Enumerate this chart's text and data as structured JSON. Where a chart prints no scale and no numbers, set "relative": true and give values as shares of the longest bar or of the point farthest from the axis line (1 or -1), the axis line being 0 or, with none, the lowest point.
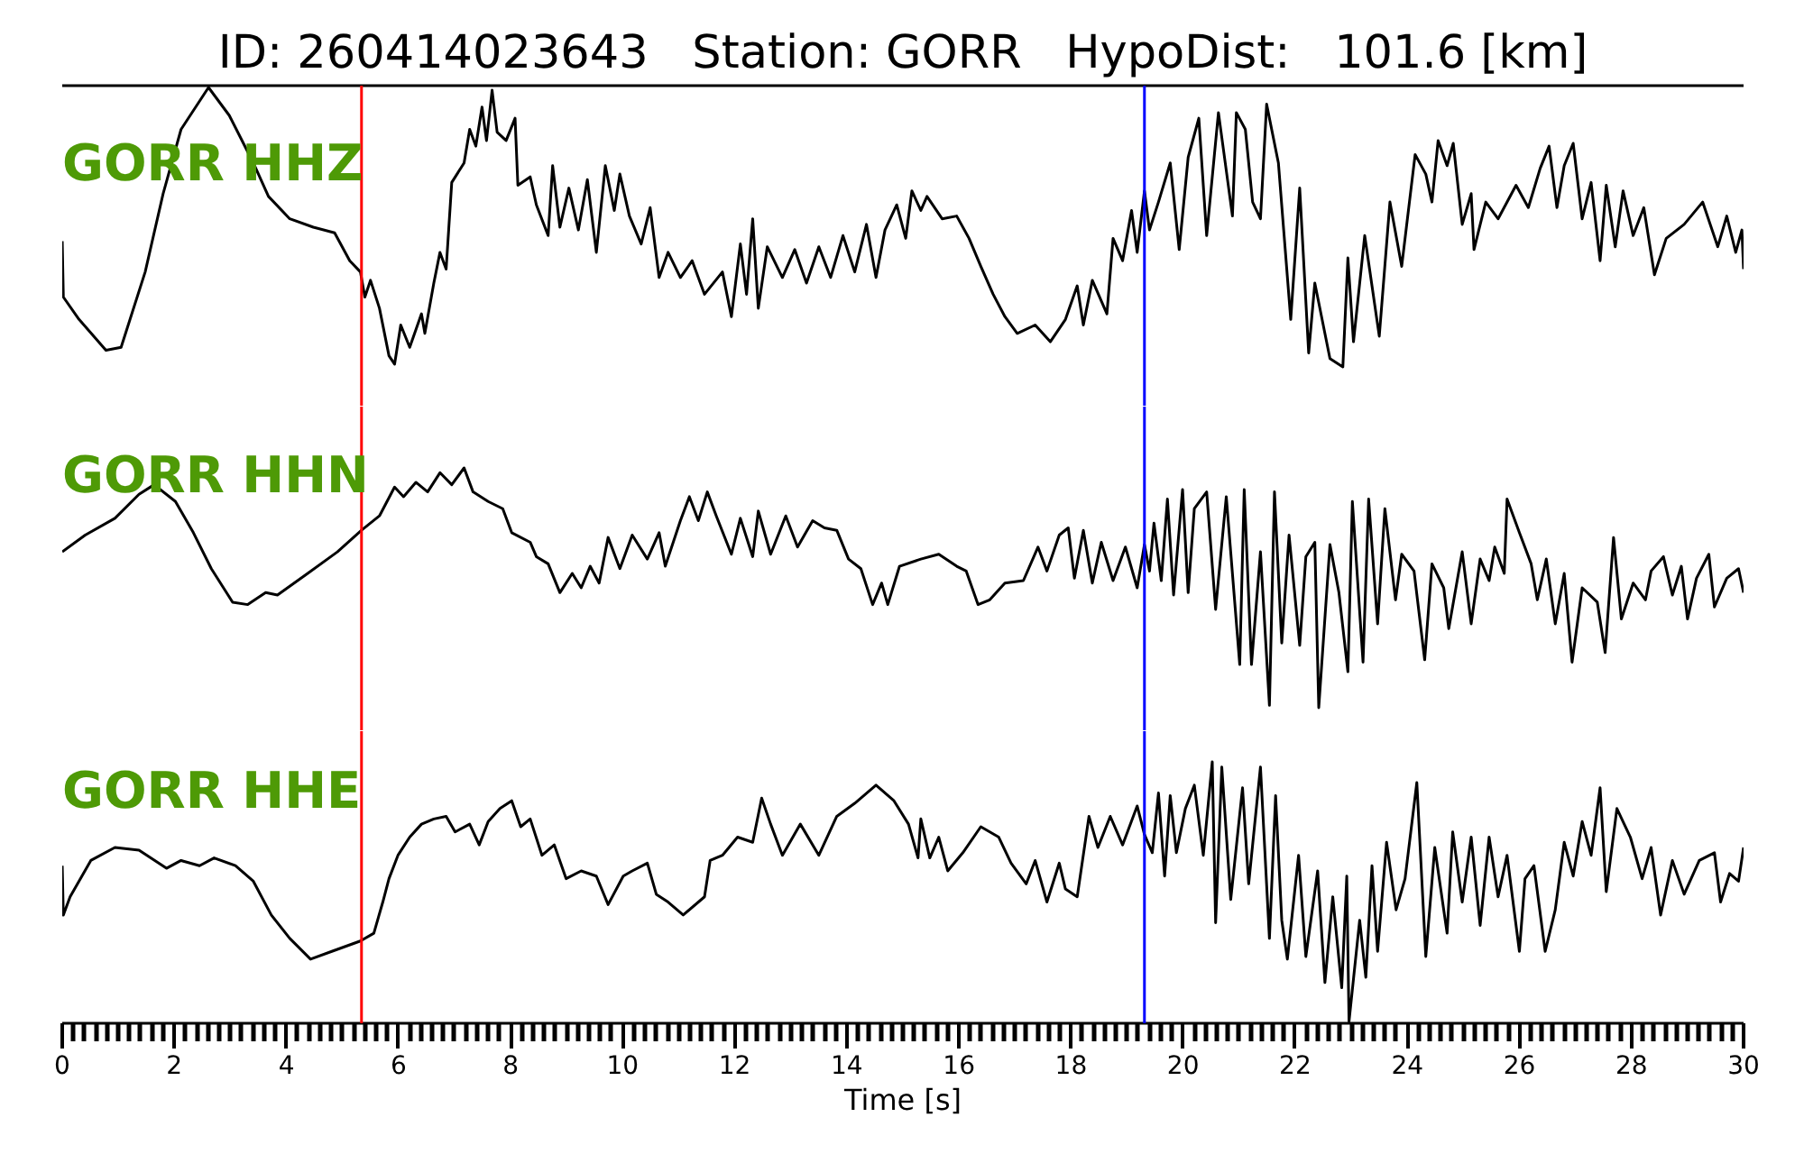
{
  "chart_data": [
    {
      "type": "line",
      "title": "ID: 260414023643   Station: GORR   HypoDist:   101.6 [km]",
      "relative": true,
      "xlim": [
        0,
        30
      ],
      "tick_labels": false,
      "ref_lines": [
        {
          "axis": "x",
          "value": 5.34,
          "color": "#ff0000"
        },
        {
          "axis": "x",
          "value": 19.31,
          "color": "#0000ff"
        }
      ],
      "series": [
        {
          "name": "GORR HHZ",
          "color": "#000000",
          "x": [
            0,
            0.02,
            0.3,
            0.78,
            1.05,
            1.48,
            1.8,
            2.12,
            2.61,
            2.98,
            3.41,
            3.68,
            4.06,
            4.48,
            4.86,
            5.13,
            5.32,
            5.4,
            5.5,
            5.66,
            5.83,
            5.93,
            6.04,
            6.2,
            6.41,
            6.47,
            6.63,
            6.74,
            6.85,
            6.95,
            7.17,
            7.27,
            7.38,
            7.49,
            7.57,
            7.67,
            7.76,
            7.92,
            8.08,
            8.13,
            8.35,
            8.46,
            8.67,
            8.75,
            8.88,
            9.04,
            9.21,
            9.37,
            9.53,
            9.69,
            9.85,
            9.95,
            10.12,
            10.33,
            10.49,
            10.65,
            10.81,
            11.03,
            11.24,
            11.46,
            11.78,
            11.94,
            12.1,
            12.21,
            12.32,
            12.42,
            12.58,
            12.85,
            13.07,
            13.28,
            13.5,
            13.71,
            13.93,
            14.14,
            14.35,
            14.52,
            14.68,
            14.89,
            15.05,
            15.16,
            15.32,
            15.43,
            15.7,
            15.96,
            16.18,
            16.39,
            16.61,
            16.82,
            17.04,
            17.36,
            17.63,
            17.9,
            18.11,
            18.22,
            18.38,
            18.64,
            18.75,
            18.92,
            19.08,
            19.18,
            19.31,
            19.4,
            19.56,
            19.77,
            19.93,
            20.09,
            20.28,
            20.42,
            20.63,
            20.88,
            20.95,
            21.11,
            21.24,
            21.38,
            21.49,
            21.7,
            21.92,
            22.08,
            22.24,
            22.35,
            22.62,
            22.85,
            22.94,
            23.04,
            23.24,
            23.5,
            23.69,
            23.9,
            24.14,
            24.33,
            24.44,
            24.55,
            24.71,
            24.82,
            24.98,
            25.14,
            25.19,
            25.4,
            25.62,
            25.94,
            26.16,
            26.37,
            26.53,
            26.67,
            26.8,
            26.96,
            27.12,
            27.28,
            27.44,
            27.55,
            27.71,
            27.85,
            28.03,
            28.22,
            28.41,
            28.62,
            28.94,
            29.27,
            29.54,
            29.7,
            29.86,
            29.97,
            30
          ],
          "values": [
            0.45,
            0.25,
            0.17,
            0.06,
            0.07,
            0.34,
            0.62,
            0.85,
            1,
            0.9,
            0.73,
            0.61,
            0.53,
            0.5,
            0.48,
            0.38,
            0.34,
            0.25,
            0.31,
            0.21,
            0.04,
            0.01,
            0.15,
            0.07,
            0.19,
            0.12,
            0.3,
            0.41,
            0.35,
            0.66,
            0.73,
            0.85,
            0.79,
            0.93,
            0.81,
            0.99,
            0.84,
            0.81,
            0.89,
            0.65,
            0.68,
            0.58,
            0.47,
            0.72,
            0.5,
            0.64,
            0.49,
            0.67,
            0.41,
            0.72,
            0.56,
            0.69,
            0.54,
            0.44,
            0.57,
            0.32,
            0.41,
            0.32,
            0.38,
            0.26,
            0.34,
            0.18,
            0.44,
            0.26,
            0.53,
            0.21,
            0.43,
            0.32,
            0.42,
            0.3,
            0.43,
            0.32,
            0.47,
            0.34,
            0.51,
            0.32,
            0.49,
            0.58,
            0.46,
            0.63,
            0.56,
            0.61,
            0.53,
            0.54,
            0.46,
            0.36,
            0.26,
            0.18,
            0.12,
            0.15,
            0.09,
            0.17,
            0.29,
            0.15,
            0.31,
            0.19,
            0.46,
            0.38,
            0.56,
            0.41,
            0.63,
            0.49,
            0.59,
            0.73,
            0.42,
            0.75,
            0.89,
            0.47,
            0.91,
            0.54,
            0.91,
            0.85,
            0.59,
            0.53,
            0.94,
            0.73,
            0.17,
            0.64,
            0.05,
            0.3,
            0.03,
            0,
            0.39,
            0.09,
            0.47,
            0.11,
            0.59,
            0.36,
            0.76,
            0.69,
            0.59,
            0.81,
            0.72,
            0.8,
            0.51,
            0.62,
            0.42,
            0.59,
            0.53,
            0.65,
            0.57,
            0.71,
            0.79,
            0.57,
            0.72,
            0.8,
            0.53,
            0.66,
            0.38,
            0.65,
            0.43,
            0.63,
            0.47,
            0.57,
            0.33,
            0.46,
            0.51,
            0.59,
            0.43,
            0.54,
            0.41,
            0.49,
            0.35
          ]
        }
      ]
    },
    {
      "type": "line",
      "relative": true,
      "xlim": [
        0,
        30
      ],
      "tick_labels": false,
      "ref_lines": [
        {
          "axis": "x",
          "value": 5.34,
          "color": "#ff0000"
        },
        {
          "axis": "x",
          "value": 19.31,
          "color": "#0000ff"
        }
      ],
      "series": [
        {
          "name": "GORR HHN",
          "color": "#000000",
          "x": [
            0,
            0.41,
            0.94,
            1.37,
            1.64,
            2.02,
            2.34,
            2.66,
            3.04,
            3.31,
            3.63,
            3.84,
            4.38,
            4.91,
            5.34,
            5.66,
            5.93,
            6.09,
            6.31,
            6.52,
            6.74,
            6.95,
            7.17,
            7.33,
            7.6,
            7.86,
            8.02,
            8.35,
            8.46,
            8.67,
            8.88,
            9.1,
            9.26,
            9.42,
            9.58,
            9.74,
            9.95,
            10.17,
            10.44,
            10.65,
            10.76,
            11.03,
            11.19,
            11.35,
            11.51,
            11.67,
            11.94,
            12.1,
            12.32,
            12.42,
            12.64,
            12.91,
            13.12,
            13.39,
            13.6,
            13.82,
            14.03,
            14.25,
            14.46,
            14.62,
            14.73,
            14.94,
            15.32,
            15.64,
            15.96,
            16.13,
            16.34,
            16.55,
            16.82,
            17.15,
            17.41,
            17.57,
            17.79,
            17.95,
            18.06,
            18.22,
            18.38,
            18.54,
            18.75,
            18.97,
            19.18,
            19.31,
            19.4,
            19.48,
            19.61,
            19.72,
            19.83,
            19.99,
            20.09,
            20.2,
            20.42,
            20.58,
            20.77,
            21.01,
            21.09,
            21.22,
            21.38,
            21.54,
            21.63,
            21.76,
            21.89,
            22.08,
            22.19,
            22.35,
            22.42,
            22.62,
            22.78,
            22.94,
            23.02,
            23.21,
            23.31,
            23.47,
            23.6,
            23.79,
            23.9,
            24.12,
            24.31,
            24.44,
            24.65,
            24.74,
            24.98,
            25.14,
            25.3,
            25.46,
            25.56,
            25.73,
            25.78,
            26.0,
            26.21,
            26.32,
            26.48,
            26.64,
            26.8,
            26.94,
            27.12,
            27.39,
            27.53,
            27.68,
            27.82,
            28.03,
            28.25,
            28.35,
            28.57,
            28.73,
            28.89,
            29.0,
            29.16,
            29.38,
            29.48,
            29.7,
            29.91,
            30
          ],
          "values": [
            0.65,
            0.72,
            0.79,
            0.89,
            0.93,
            0.86,
            0.73,
            0.58,
            0.44,
            0.43,
            0.48,
            0.47,
            0.56,
            0.65,
            0.74,
            0.8,
            0.92,
            0.88,
            0.94,
            0.9,
            0.98,
            0.93,
            1,
            0.9,
            0.86,
            0.83,
            0.73,
            0.69,
            0.63,
            0.6,
            0.48,
            0.56,
            0.5,
            0.59,
            0.52,
            0.71,
            0.58,
            0.72,
            0.62,
            0.73,
            0.59,
            0.78,
            0.88,
            0.78,
            0.9,
            0.8,
            0.64,
            0.79,
            0.63,
            0.82,
            0.64,
            0.8,
            0.67,
            0.78,
            0.75,
            0.74,
            0.62,
            0.58,
            0.43,
            0.52,
            0.43,
            0.59,
            0.62,
            0.64,
            0.59,
            0.57,
            0.43,
            0.45,
            0.52,
            0.53,
            0.67,
            0.57,
            0.72,
            0.75,
            0.54,
            0.74,
            0.52,
            0.69,
            0.53,
            0.67,
            0.5,
            0.68,
            0.57,
            0.77,
            0.53,
            0.87,
            0.47,
            0.91,
            0.48,
            0.83,
            0.9,
            0.41,
            0.88,
            0.18,
            0.91,
            0.18,
            0.65,
            0.01,
            0.9,
            0.27,
            0.72,
            0.26,
            0.63,
            0.69,
            0,
            0.68,
            0.48,
            0.15,
            0.86,
            0.19,
            0.87,
            0.35,
            0.83,
            0.45,
            0.64,
            0.57,
            0.2,
            0.6,
            0.5,
            0.33,
            0.65,
            0.35,
            0.62,
            0.53,
            0.67,
            0.56,
            0.87,
            0.73,
            0.6,
            0.45,
            0.62,
            0.35,
            0.56,
            0.19,
            0.5,
            0.44,
            0.23,
            0.71,
            0.37,
            0.52,
            0.45,
            0.57,
            0.63,
            0.47,
            0.59,
            0.37,
            0.54,
            0.64,
            0.42,
            0.54,
            0.58,
            0.48
          ]
        }
      ]
    },
    {
      "type": "line",
      "relative": true,
      "xlim": [
        0,
        30
      ],
      "tick_labels": "x",
      "xlabel": "Time [s]",
      "xticks": [
        0,
        {
          "value": 0.2,
          "label": null
        },
        {
          "value": 0.4,
          "label": null
        },
        {
          "value": 0.6,
          "label": null
        },
        {
          "value": 0.8,
          "label": null
        },
        {
          "value": 1,
          "label": null
        },
        {
          "value": 1.2,
          "label": null
        },
        {
          "value": 1.4,
          "label": null
        },
        {
          "value": 1.6,
          "label": null
        },
        {
          "value": 1.8,
          "label": null
        },
        2,
        {
          "value": 2.2,
          "label": null
        },
        {
          "value": 2.4,
          "label": null
        },
        {
          "value": 2.6,
          "label": null
        },
        {
          "value": 2.8,
          "label": null
        },
        {
          "value": 3,
          "label": null
        },
        {
          "value": 3.2,
          "label": null
        },
        {
          "value": 3.4,
          "label": null
        },
        {
          "value": 3.6,
          "label": null
        },
        {
          "value": 3.8,
          "label": null
        },
        4,
        {
          "value": 4.2,
          "label": null
        },
        {
          "value": 4.4,
          "label": null
        },
        {
          "value": 4.6,
          "label": null
        },
        {
          "value": 4.8,
          "label": null
        },
        {
          "value": 5,
          "label": null
        },
        {
          "value": 5.2,
          "label": null
        },
        {
          "value": 5.4,
          "label": null
        },
        {
          "value": 5.6,
          "label": null
        },
        {
          "value": 5.8,
          "label": null
        },
        6,
        {
          "value": 6.2,
          "label": null
        },
        {
          "value": 6.4,
          "label": null
        },
        {
          "value": 6.6,
          "label": null
        },
        {
          "value": 6.8,
          "label": null
        },
        {
          "value": 7,
          "label": null
        },
        {
          "value": 7.2,
          "label": null
        },
        {
          "value": 7.4,
          "label": null
        },
        {
          "value": 7.6,
          "label": null
        },
        {
          "value": 7.8,
          "label": null
        },
        8,
        {
          "value": 8.2,
          "label": null
        },
        {
          "value": 8.4,
          "label": null
        },
        {
          "value": 8.6,
          "label": null
        },
        {
          "value": 8.8,
          "label": null
        },
        {
          "value": 9,
          "label": null
        },
        {
          "value": 9.2,
          "label": null
        },
        {
          "value": 9.4,
          "label": null
        },
        {
          "value": 9.6,
          "label": null
        },
        {
          "value": 9.8,
          "label": null
        },
        10,
        {
          "value": 10.2,
          "label": null
        },
        {
          "value": 10.4,
          "label": null
        },
        {
          "value": 10.6,
          "label": null
        },
        {
          "value": 10.8,
          "label": null
        },
        {
          "value": 11,
          "label": null
        },
        {
          "value": 11.2,
          "label": null
        },
        {
          "value": 11.4,
          "label": null
        },
        {
          "value": 11.6,
          "label": null
        },
        {
          "value": 11.8,
          "label": null
        },
        12,
        {
          "value": 12.2,
          "label": null
        },
        {
          "value": 12.4,
          "label": null
        },
        {
          "value": 12.6,
          "label": null
        },
        {
          "value": 12.8,
          "label": null
        },
        {
          "value": 13,
          "label": null
        },
        {
          "value": 13.2,
          "label": null
        },
        {
          "value": 13.4,
          "label": null
        },
        {
          "value": 13.6,
          "label": null
        },
        {
          "value": 13.8,
          "label": null
        },
        14,
        {
          "value": 14.2,
          "label": null
        },
        {
          "value": 14.4,
          "label": null
        },
        {
          "value": 14.6,
          "label": null
        },
        {
          "value": 14.8,
          "label": null
        },
        {
          "value": 15,
          "label": null
        },
        {
          "value": 15.2,
          "label": null
        },
        {
          "value": 15.4,
          "label": null
        },
        {
          "value": 15.6,
          "label": null
        },
        {
          "value": 15.8,
          "label": null
        },
        16,
        {
          "value": 16.2,
          "label": null
        },
        {
          "value": 16.4,
          "label": null
        },
        {
          "value": 16.6,
          "label": null
        },
        {
          "value": 16.8,
          "label": null
        },
        {
          "value": 17,
          "label": null
        },
        {
          "value": 17.2,
          "label": null
        },
        {
          "value": 17.4,
          "label": null
        },
        {
          "value": 17.6,
          "label": null
        },
        {
          "value": 17.8,
          "label": null
        },
        18,
        {
          "value": 18.2,
          "label": null
        },
        {
          "value": 18.4,
          "label": null
        },
        {
          "value": 18.6,
          "label": null
        },
        {
          "value": 18.8,
          "label": null
        },
        {
          "value": 19,
          "label": null
        },
        {
          "value": 19.2,
          "label": null
        },
        {
          "value": 19.4,
          "label": null
        },
        {
          "value": 19.6,
          "label": null
        },
        {
          "value": 19.8,
          "label": null
        },
        20,
        {
          "value": 20.2,
          "label": null
        },
        {
          "value": 20.4,
          "label": null
        },
        {
          "value": 20.6,
          "label": null
        },
        {
          "value": 20.8,
          "label": null
        },
        {
          "value": 21,
          "label": null
        },
        {
          "value": 21.2,
          "label": null
        },
        {
          "value": 21.4,
          "label": null
        },
        {
          "value": 21.6,
          "label": null
        },
        {
          "value": 21.8,
          "label": null
        },
        22,
        {
          "value": 22.2,
          "label": null
        },
        {
          "value": 22.4,
          "label": null
        },
        {
          "value": 22.6,
          "label": null
        },
        {
          "value": 22.8,
          "label": null
        },
        {
          "value": 23,
          "label": null
        },
        {
          "value": 23.2,
          "label": null
        },
        {
          "value": 23.4,
          "label": null
        },
        {
          "value": 23.6,
          "label": null
        },
        {
          "value": 23.8,
          "label": null
        },
        24,
        {
          "value": 24.2,
          "label": null
        },
        {
          "value": 24.4,
          "label": null
        },
        {
          "value": 24.6,
          "label": null
        },
        {
          "value": 24.8,
          "label": null
        },
        {
          "value": 25,
          "label": null
        },
        {
          "value": 25.2,
          "label": null
        },
        {
          "value": 25.4,
          "label": null
        },
        {
          "value": 25.6,
          "label": null
        },
        {
          "value": 25.8,
          "label": null
        },
        26,
        {
          "value": 26.2,
          "label": null
        },
        {
          "value": 26.4,
          "label": null
        },
        {
          "value": 26.6,
          "label": null
        },
        {
          "value": 26.8,
          "label": null
        },
        {
          "value": 27,
          "label": null
        },
        {
          "value": 27.2,
          "label": null
        },
        {
          "value": 27.4,
          "label": null
        },
        {
          "value": 27.6,
          "label": null
        },
        {
          "value": 27.8,
          "label": null
        },
        28,
        {
          "value": 28.2,
          "label": null
        },
        {
          "value": 28.4,
          "label": null
        },
        {
          "value": 28.6,
          "label": null
        },
        {
          "value": 28.8,
          "label": null
        },
        {
          "value": 29,
          "label": null
        },
        {
          "value": 29.2,
          "label": null
        },
        {
          "value": 29.4,
          "label": null
        },
        {
          "value": 29.6,
          "label": null
        },
        {
          "value": 29.8,
          "label": null
        },
        30
      ],
      "ref_lines": [
        {
          "axis": "x",
          "value": 5.34,
          "color": "#ff0000"
        },
        {
          "axis": "x",
          "value": 19.31,
          "color": "#0000ff"
        }
      ],
      "series": [
        {
          "name": "GORR HHE",
          "color": "#000000",
          "x": [
            0,
            0.02,
            0.14,
            0.51,
            0.94,
            1.37,
            1.86,
            2.12,
            2.45,
            2.71,
            3.09,
            3.41,
            3.73,
            4.06,
            4.43,
            4.81,
            5.32,
            5.56,
            5.72,
            5.83,
            5.99,
            6.2,
            6.41,
            6.63,
            6.85,
            7.01,
            7.27,
            7.44,
            7.6,
            7.81,
            8.02,
            8.18,
            8.35,
            8.56,
            8.78,
            8.99,
            9.26,
            9.53,
            9.74,
            10.01,
            10.17,
            10.44,
            10.6,
            10.81,
            11.08,
            11.46,
            11.56,
            11.78,
            12.05,
            12.32,
            12.48,
            12.64,
            12.85,
            13.17,
            13.5,
            13.82,
            14.14,
            14.52,
            14.84,
            15.1,
            15.27,
            15.32,
            15.48,
            15.64,
            15.8,
            16.07,
            16.39,
            16.71,
            16.93,
            17.2,
            17.36,
            17.57,
            17.79,
            17.9,
            18.11,
            18.32,
            18.48,
            18.7,
            18.92,
            19.18,
            19.31,
            19.45,
            19.56,
            19.67,
            19.77,
            19.88,
            20.04,
            20.2,
            20.36,
            20.52,
            20.58,
            20.69,
            20.85,
            21.06,
            21.17,
            21.38,
            21.54,
            21.65,
            21.76,
            21.86,
            22.06,
            22.19,
            22.4,
            22.53,
            22.67,
            22.83,
            22.92,
            22.96,
            23.15,
            23.26,
            23.37,
            23.47,
            23.63,
            23.8,
            23.96,
            24.17,
            24.33,
            24.49,
            24.71,
            24.81,
            24.98,
            25.14,
            25.3,
            25.46,
            25.62,
            25.78,
            26.0,
            26.1,
            26.26,
            26.46,
            26.64,
            26.8,
            26.96,
            27.12,
            27.28,
            27.44,
            27.55,
            27.74,
            27.98,
            28.19,
            28.35,
            28.52,
            28.73,
            28.94,
            29.21,
            29.48,
            29.59,
            29.75,
            29.91,
            30
          ],
          "values": [
            0.6,
            0.41,
            0.48,
            0.62,
            0.67,
            0.66,
            0.59,
            0.62,
            0.6,
            0.63,
            0.6,
            0.54,
            0.41,
            0.32,
            0.24,
            0.27,
            0.31,
            0.34,
            0.46,
            0.55,
            0.64,
            0.71,
            0.76,
            0.78,
            0.79,
            0.73,
            0.76,
            0.68,
            0.77,
            0.82,
            0.85,
            0.75,
            0.78,
            0.64,
            0.68,
            0.55,
            0.58,
            0.56,
            0.45,
            0.56,
            0.58,
            0.61,
            0.49,
            0.46,
            0.41,
            0.48,
            0.62,
            0.64,
            0.71,
            0.69,
            0.86,
            0.76,
            0.64,
            0.76,
            0.64,
            0.79,
            0.84,
            0.91,
            0.85,
            0.76,
            0.63,
            0.78,
            0.63,
            0.71,
            0.58,
            0.65,
            0.75,
            0.71,
            0.61,
            0.53,
            0.62,
            0.46,
            0.61,
            0.51,
            0.48,
            0.79,
            0.67,
            0.79,
            0.68,
            0.83,
            0.72,
            0.65,
            0.88,
            0.56,
            0.87,
            0.65,
            0.82,
            0.91,
            0.64,
            1,
            0.38,
            0.98,
            0.47,
            0.9,
            0.53,
            0.98,
            0.32,
            0.87,
            0.39,
            0.24,
            0.64,
            0.25,
            0.58,
            0.15,
            0.48,
            0.13,
            0.56,
            0,
            0.39,
            0.17,
            0.6,
            0.27,
            0.69,
            0.43,
            0.55,
            0.92,
            0.25,
            0.67,
            0.34,
            0.73,
            0.46,
            0.71,
            0.37,
            0.71,
            0.48,
            0.64,
            0.27,
            0.55,
            0.6,
            0.27,
            0.43,
            0.69,
            0.56,
            0.77,
            0.64,
            0.9,
            0.5,
            0.82,
            0.71,
            0.55,
            0.67,
            0.41,
            0.62,
            0.49,
            0.62,
            0.65,
            0.46,
            0.57,
            0.54,
            0.67
          ]
        }
      ]
    }
  ]
}
